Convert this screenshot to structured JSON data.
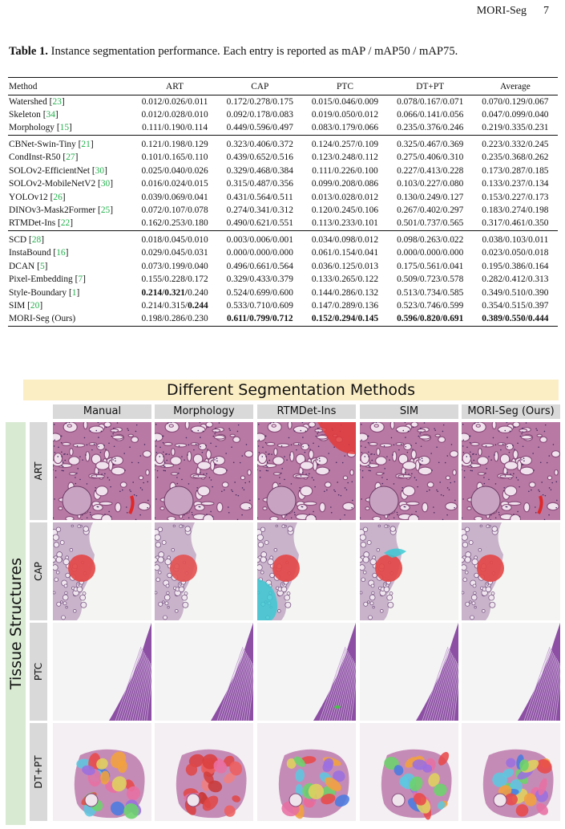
{
  "running_head": {
    "title": "MORI-Seg",
    "page": "7"
  },
  "caption": {
    "label": "Table 1.",
    "text": " Instance segmentation performance. Each entry is reported as mAP / mAP50 / mAP75."
  },
  "table": {
    "headers": [
      "Method",
      "ART",
      "CAP",
      "PTC",
      "DT+PT",
      "Average"
    ],
    "groups": [
      [
        {
          "name": "Watershed",
          "ref": "23",
          "cells": [
            "0.012/0.026/0.011",
            "0.172/0.278/0.175",
            "0.015/0.046/0.009",
            "0.078/0.167/0.071",
            "0.070/0.129/0.067"
          ]
        },
        {
          "name": "Skeleton",
          "ref": "34",
          "cells": [
            "0.012/0.028/0.010",
            "0.092/0.178/0.083",
            "0.019/0.050/0.012",
            "0.066/0.141/0.056",
            "0.047/0.099/0.040"
          ]
        },
        {
          "name": "Morphology",
          "ref": "15",
          "cells": [
            "0.111/0.190/0.114",
            "0.449/0.596/0.497",
            "0.083/0.179/0.066",
            "0.235/0.376/0.246",
            "0.219/0.335/0.231"
          ]
        }
      ],
      [
        {
          "name": "CBNet-Swin-Tiny",
          "ref": "21",
          "cells": [
            "0.121/0.198/0.129",
            "0.323/0.406/0.372",
            "0.124/0.257/0.109",
            "0.325/0.467/0.369",
            "0.223/0.332/0.245"
          ]
        },
        {
          "name": "CondInst-R50",
          "ref": "27",
          "cells": [
            "0.101/0.165/0.110",
            "0.439/0.652/0.516",
            "0.123/0.248/0.112",
            "0.275/0.406/0.310",
            "0.235/0.368/0.262"
          ]
        },
        {
          "name": "SOLOv2-EfficientNet",
          "ref": "30",
          "cells": [
            "0.025/0.040/0.026",
            "0.329/0.468/0.384",
            "0.111/0.226/0.100",
            "0.227/0.413/0.228",
            "0.173/0.287/0.185"
          ]
        },
        {
          "name": "SOLOv2-MobileNetV2",
          "ref": "30",
          "cells": [
            "0.016/0.024/0.015",
            "0.315/0.487/0.356",
            "0.099/0.208/0.086",
            "0.103/0.227/0.080",
            "0.133/0.237/0.134"
          ]
        },
        {
          "name": "YOLOv12",
          "ref": "26",
          "cells": [
            "0.039/0.069/0.041",
            "0.431/0.564/0.511",
            "0.013/0.028/0.012",
            "0.130/0.249/0.127",
            "0.153/0.227/0.173"
          ]
        },
        {
          "name": "DINOv3-Mask2Former",
          "ref": "25",
          "cells": [
            "0.072/0.107/0.078",
            "0.274/0.341/0.312",
            "0.120/0.245/0.106",
            "0.267/0.402/0.297",
            "0.183/0.274/0.198"
          ]
        },
        {
          "name": "RTMDet-Ins",
          "ref": "22",
          "cells": [
            "0.162/0.253/0.180",
            "0.490/0.621/0.551",
            "0.113/0.233/0.101",
            "0.501/0.737/0.565",
            "0.317/0.461/0.350"
          ]
        }
      ],
      [
        {
          "name": "SCD",
          "ref": "28",
          "cells": [
            "0.018/0.045/0.010",
            "0.003/0.006/0.001",
            "0.034/0.098/0.012",
            "0.098/0.263/0.022",
            "0.038/0.103/0.011"
          ]
        },
        {
          "name": "InstaBound",
          "ref": "16",
          "cells": [
            "0.029/0.045/0.031",
            "0.000/0.000/0.000",
            "0.061/0.154/0.041",
            "0.000/0.000/0.000",
            "0.023/0.050/0.018"
          ]
        },
        {
          "name": "DCAN",
          "ref": "5",
          "cells": [
            "0.073/0.199/0.040",
            "0.496/0.661/0.564",
            "0.036/0.125/0.013",
            "0.175/0.561/0.041",
            "0.195/0.386/0.164"
          ]
        },
        {
          "name": "Pixel-Embedding",
          "ref": "7",
          "cells": [
            "0.155/0.228/0.172",
            "0.329/0.433/0.379",
            "0.133/0.265/0.122",
            "0.509/0.723/0.578",
            "0.282/0.412/0.313"
          ]
        },
        {
          "name": "Style-Boundary",
          "ref": "1",
          "cells": [
            "0.214/0.321/0.240",
            "0.524/0.699/0.600",
            "0.144/0.286/0.132",
            "0.513/0.734/0.585",
            "0.349/0.510/0.390"
          ]
        },
        {
          "name": "SIM",
          "ref": "20",
          "cells": [
            "0.214/0.315/0.244",
            "0.533/0.710/0.609",
            "0.147/0.289/0.136",
            "0.523/0.746/0.599",
            "0.354/0.515/0.397"
          ]
        },
        {
          "name": "MORI-Seg (Ours)",
          "ref": "",
          "cells": [
            "0.198/0.286/0.230",
            "0.611/0.799/0.712",
            "0.152/0.294/0.145",
            "0.596/0.820/0.691",
            "0.389/0.550/0.444"
          ]
        }
      ]
    ]
  },
  "figure": {
    "title": "Different Segmentation Methods",
    "side_label": "Tissue Structures",
    "columns": [
      "Manual",
      "Morphology",
      "RTMDet-Ins",
      "SIM",
      "MORI-Seg (Ours)"
    ],
    "rows": [
      "ART",
      "CAP",
      "PTC",
      "DT+PT"
    ]
  }
}
